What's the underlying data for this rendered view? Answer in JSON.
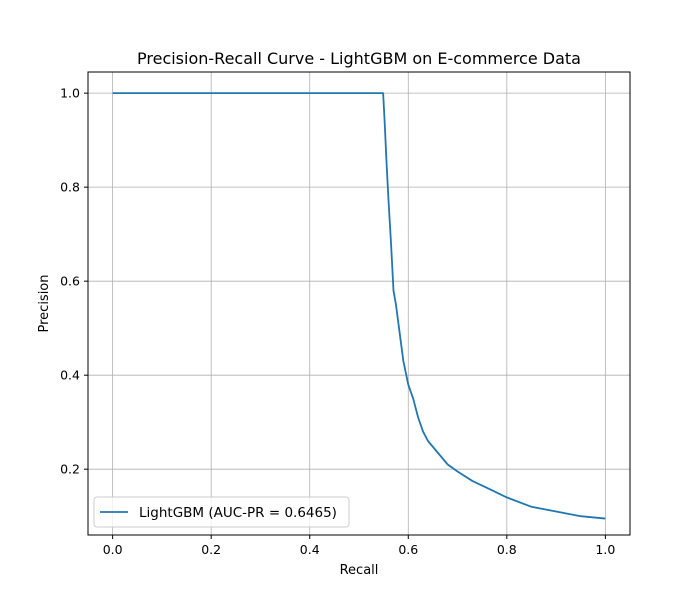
{
  "chart_data": {
    "type": "line",
    "title": "Precision-Recall Curve - LightGBM on E-commerce Data",
    "xlabel": "Recall",
    "ylabel": "Precision",
    "xlim": [
      -0.05,
      1.05
    ],
    "ylim": [
      0.06,
      1.045
    ],
    "xticks": [
      0.0,
      0.2,
      0.4,
      0.6,
      0.8,
      1.0
    ],
    "xtick_labels": [
      "0.0",
      "0.2",
      "0.4",
      "0.6",
      "0.8",
      "1.0"
    ],
    "yticks": [
      0.2,
      0.4,
      0.6,
      0.8,
      1.0
    ],
    "ytick_labels": [
      "0.2",
      "0.4",
      "0.6",
      "0.8",
      "1.0"
    ],
    "grid": true,
    "legend_position": "lower-left",
    "series": [
      {
        "name": "LightGBM (AUC-PR = 0.6465)",
        "color": "#1f77b4",
        "x": [
          0.0,
          0.1,
          0.2,
          0.3,
          0.4,
          0.5,
          0.549,
          0.552,
          0.556,
          0.56,
          0.565,
          0.57,
          0.575,
          0.58,
          0.585,
          0.59,
          0.6,
          0.61,
          0.62,
          0.63,
          0.64,
          0.66,
          0.68,
          0.7,
          0.73,
          0.76,
          0.8,
          0.85,
          0.9,
          0.95,
          1.0
        ],
        "y": [
          1.0,
          1.0,
          1.0,
          1.0,
          1.0,
          1.0,
          1.0,
          0.94,
          0.85,
          0.77,
          0.68,
          0.58,
          0.55,
          0.51,
          0.47,
          0.43,
          0.38,
          0.35,
          0.31,
          0.28,
          0.26,
          0.235,
          0.21,
          0.195,
          0.175,
          0.16,
          0.14,
          0.12,
          0.11,
          0.1,
          0.095
        ]
      }
    ]
  }
}
